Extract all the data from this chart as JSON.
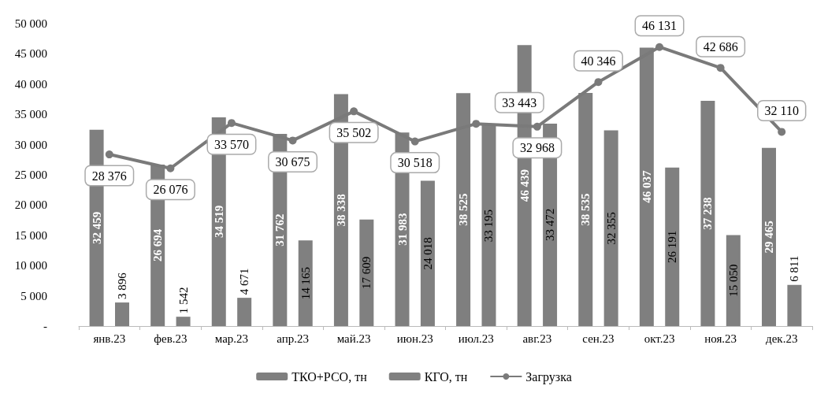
{
  "chart_data": {
    "type": "bar",
    "categories": [
      "янв.23",
      "фев.23",
      "мар.23",
      "апр.23",
      "май.23",
      "июн.23",
      "июл.23",
      "авг.23",
      "сен.23",
      "окт.23",
      "ноя.23",
      "дек.23"
    ],
    "ylim": [
      0,
      50000
    ],
    "yticks": [
      {
        "value": 0,
        "label": "-"
      },
      {
        "value": 5000,
        "label": "5 000"
      },
      {
        "value": 10000,
        "label": "10 000"
      },
      {
        "value": 15000,
        "label": "15 000"
      },
      {
        "value": 20000,
        "label": "20 000"
      },
      {
        "value": 25000,
        "label": "25 000"
      },
      {
        "value": 30000,
        "label": "30 000"
      },
      {
        "value": 35000,
        "label": "35 000"
      },
      {
        "value": 40000,
        "label": "40 000"
      },
      {
        "value": 45000,
        "label": "45 000"
      },
      {
        "value": 50000,
        "label": "50 000"
      }
    ],
    "grid": false,
    "legend": "bottom",
    "series": [
      {
        "name": "ТКО+РСО, тн",
        "color": "#7f7f7f",
        "values": [
          32459,
          26694,
          34519,
          31762,
          38338,
          31983,
          38525,
          46439,
          38535,
          46037,
          37238,
          29465
        ],
        "value_labels": [
          "32 459",
          "26 694",
          "34 519",
          "31 762",
          "38 338",
          "31 983",
          "38 525",
          "46 439",
          "38 535",
          "46 037",
          "37 238",
          "29 465"
        ]
      },
      {
        "name": "КГО, тн",
        "color": "#808080",
        "values": [
          3896,
          1542,
          4671,
          14165,
          17609,
          24018,
          33195,
          33472,
          32355,
          26191,
          15050,
          6811
        ],
        "value_labels": [
          "3 896",
          "1 542",
          "4 671",
          "14 165",
          "17 609",
          "24 018",
          "33 195",
          "33 472",
          "32 355",
          "26 191",
          "15 050",
          "6 811"
        ]
      },
      {
        "name": "Загрузка",
        "type": "line",
        "color": "#7a7a7a",
        "marker": "circle",
        "values": [
          28376,
          26076,
          33570,
          30675,
          35502,
          30518,
          33443,
          32968,
          40346,
          46131,
          42686,
          32110
        ],
        "value_labels": [
          "28 376",
          "26 076",
          "33 570",
          "30 675",
          "35 502",
          "30 518",
          "33 443",
          "32 968",
          "40 346",
          "46 131",
          "42 686",
          "32 110"
        ]
      }
    ]
  }
}
